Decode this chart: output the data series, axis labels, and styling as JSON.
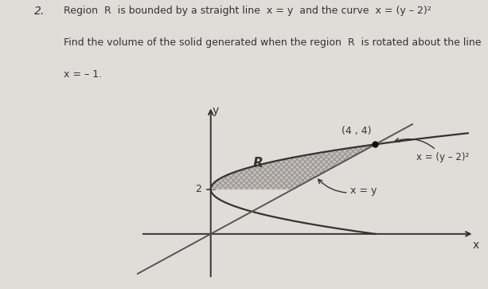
{
  "title_line1": "Region  R  is bounded by a straight line  x = y  and the curve  x = (y – 2)²",
  "title_line2": "Find the volume of the solid generated when the region  R  is rotated about the line",
  "title_line3": "x = – 1.",
  "problem_number": "2.",
  "background_color": "#e0ddd8",
  "axes_color": "#333333",
  "region_fill_color": "#c8c0b8",
  "region_hatch_color": "#999999",
  "curve_color": "#333333",
  "line_color": "#555555",
  "point_label": "(4 , 4)",
  "point": [
    4,
    4
  ],
  "label_R": "R",
  "label_x_eq_y": "x = y",
  "label_curve": "x = (y – 2)²",
  "label_y": "y",
  "label_x": "x",
  "y_tick_label": "2",
  "y_tick_val": 2,
  "x_axis_range": [
    -1.8,
    6.5
  ],
  "y_axis_range": [
    -2.2,
    5.8
  ]
}
